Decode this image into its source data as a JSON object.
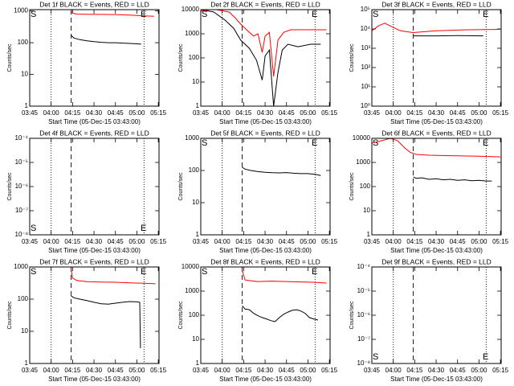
{
  "chart_data": [
    {
      "type": "line",
      "title": "Det 1f BLACK = Events, RED = LLD",
      "xlabel": "Start Time (05-Dec-15 03:43:00)",
      "ylabel": "Counts/sec",
      "xlim": [
        225,
        315.5
      ],
      "xticks": [
        {
          "value": 225,
          "label": "03:45"
        },
        {
          "value": 240,
          "label": "04:00"
        },
        {
          "value": 255,
          "label": "04:15"
        },
        {
          "value": 270,
          "label": "04:30"
        },
        {
          "value": 285,
          "label": "04:45"
        },
        {
          "value": 300,
          "label": "05:00"
        },
        {
          "value": 315,
          "label": "05:15"
        }
      ],
      "log_y": true,
      "ylim": [
        1,
        1100
      ],
      "yticks": [
        1,
        10,
        100,
        1000
      ],
      "vlines": [
        {
          "x": 240,
          "style": "dotted"
        },
        {
          "x": 254,
          "style": "dashed"
        },
        {
          "x": 305,
          "style": "dotted"
        }
      ],
      "annotation_position": "top",
      "annotations": [
        {
          "text": "S",
          "x": 225
        },
        {
          "text": "E",
          "x": 302
        }
      ],
      "series": [
        {
          "color": "#000000",
          "x": [
            254,
            256,
            260,
            265,
            270,
            275,
            280,
            285,
            290,
            295,
            300,
            303
          ],
          "values": [
            170,
            140,
            125,
            115,
            108,
            103,
            100,
            100,
            97,
            95,
            92,
            90
          ]
        },
        {
          "color": "#ff0000",
          "x": [
            254,
            255,
            258,
            265,
            275,
            285,
            295,
            305,
            312
          ],
          "values": [
            1000,
            850,
            800,
            790,
            780,
            770,
            740,
            700,
            680
          ]
        }
      ]
    },
    {
      "type": "line",
      "title": "Det 2f BLACK = Events, RED = LLD",
      "xlabel": "Start Time (05-Dec-15 03:43:00)",
      "ylabel": "Counts/sec",
      "xlim": [
        225,
        315.5
      ],
      "xticks": [
        {
          "value": 225,
          "label": "03:45"
        },
        {
          "value": 240,
          "label": "04:00"
        },
        {
          "value": 255,
          "label": "04:15"
        },
        {
          "value": 270,
          "label": "04:30"
        },
        {
          "value": 285,
          "label": "04:45"
        },
        {
          "value": 300,
          "label": "05:00"
        },
        {
          "value": 315,
          "label": "05:15"
        }
      ],
      "log_y": true,
      "ylim": [
        1,
        10000
      ],
      "yticks": [
        1,
        10,
        100,
        1000,
        10000
      ],
      "vlines": [
        {
          "x": 240,
          "style": "dotted"
        },
        {
          "x": 254,
          "style": "dashed"
        },
        {
          "x": 305,
          "style": "dotted"
        }
      ],
      "annotation_position": "top",
      "annotations": [
        {
          "text": "S",
          "x": 225
        },
        {
          "text": "E",
          "x": 302
        }
      ],
      "series": [
        {
          "color": "#000000",
          "x": [
            225,
            234,
            242,
            248,
            253,
            259,
            264,
            268,
            270,
            273,
            276,
            279,
            282,
            286,
            293,
            302,
            309
          ],
          "values": [
            10000,
            8000,
            3700,
            1700,
            540,
            250,
            80,
            12,
            120,
            210,
            1,
            25,
            210,
            370,
            290,
            370,
            370
          ]
        },
        {
          "color": "#ff0000",
          "x": [
            225,
            231,
            236,
            245,
            249,
            253,
            259,
            262,
            265,
            268,
            270,
            273,
            276,
            279,
            283,
            288,
            313
          ],
          "values": [
            8500,
            10000,
            10000,
            7900,
            4600,
            2500,
            1150,
            800,
            1000,
            170,
            800,
            1150,
            17,
            540,
            1150,
            1470,
            1470
          ]
        }
      ]
    },
    {
      "type": "line",
      "title": "Det 3f BLACK = Events, RED = LLD",
      "xlabel": "Start Time (05-Dec-15 03:43:00)",
      "ylabel": "Counts/sec",
      "xlim": [
        225,
        315.5
      ],
      "xticks": [
        {
          "value": 225,
          "label": "03:45"
        },
        {
          "value": 240,
          "label": "04:00"
        },
        {
          "value": 255,
          "label": "04:15"
        },
        {
          "value": 270,
          "label": "04:30"
        },
        {
          "value": 285,
          "label": "04:45"
        },
        {
          "value": 300,
          "label": "05:00"
        },
        {
          "value": 315,
          "label": "05:15"
        }
      ],
      "log_y": true,
      "ylim": [
        1,
        100000
      ],
      "yticks": [
        {
          "value": 1,
          "label": "10⁰"
        },
        {
          "value": 10,
          "label": "10¹"
        },
        {
          "value": 100,
          "label": "10²"
        },
        {
          "value": 1000,
          "label": "10³"
        },
        {
          "value": 10000,
          "label": "10⁴"
        },
        {
          "value": 100000,
          "label": "10⁵"
        }
      ],
      "vlines": [
        {
          "x": 240,
          "style": "dotted"
        },
        {
          "x": 254,
          "style": "dashed"
        },
        {
          "x": 305,
          "style": "dotted"
        }
      ],
      "annotation_position": "top",
      "annotations": [
        {
          "text": "S",
          "x": 225
        },
        {
          "text": "E",
          "x": 302
        }
      ],
      "series": [
        {
          "color": "#000000",
          "x": [
            254,
            270,
            285,
            303
          ],
          "values": [
            4400,
            4400,
            4500,
            4400
          ]
        },
        {
          "color": "#ff0000",
          "x": [
            225,
            230,
            234,
            240,
            245,
            254,
            270,
            290,
            315
          ],
          "values": [
            8000,
            15000,
            20000,
            12000,
            8000,
            6500,
            8000,
            9000,
            9500
          ]
        }
      ]
    },
    {
      "type": "line",
      "title": "Det 4f BLACK = Events, RED = LLD",
      "xlabel": "Start Time (05-Dec-15 03:43:00)",
      "ylabel": "Counts/sec",
      "xlim": [
        225,
        315.5
      ],
      "xticks": [
        {
          "value": 225,
          "label": "03:45"
        },
        {
          "value": 240,
          "label": "04:00"
        },
        {
          "value": 255,
          "label": "04:15"
        },
        {
          "value": 270,
          "label": "04:30"
        },
        {
          "value": 285,
          "label": "04:45"
        },
        {
          "value": 300,
          "label": "05:00"
        },
        {
          "value": 315,
          "label": "05:15"
        }
      ],
      "log_y": true,
      "ylim": [
        1e-08,
        0.0001
      ],
      "yticks": [
        {
          "value": 1e-08,
          "label": "10⁻⁸"
        },
        {
          "value": 1e-07,
          "label": "10⁻⁷"
        },
        {
          "value": 1e-06,
          "label": "10⁻⁶"
        },
        {
          "value": 1e-05,
          "label": "10⁻⁵"
        },
        {
          "value": 0.0001,
          "label": "10⁻⁴"
        }
      ],
      "vlines": [
        {
          "x": 240,
          "style": "dotted"
        },
        {
          "x": 254,
          "style": "dashed"
        },
        {
          "x": 305,
          "style": "dotted"
        }
      ],
      "annotation_position": "bottom",
      "annotations": [
        {
          "text": "S",
          "x": 225
        },
        {
          "text": "E",
          "x": 302
        }
      ],
      "series": []
    },
    {
      "type": "line",
      "title": "Det 5f BLACK = Events, RED = LLD",
      "xlabel": "Start Time (05-Dec-15 03:43:00)",
      "ylabel": "Counts/sec",
      "xlim": [
        225,
        315.5
      ],
      "xticks": [
        {
          "value": 225,
          "label": "03:45"
        },
        {
          "value": 240,
          "label": "04:00"
        },
        {
          "value": 255,
          "label": "04:15"
        },
        {
          "value": 270,
          "label": "04:30"
        },
        {
          "value": 285,
          "label": "04:45"
        },
        {
          "value": 300,
          "label": "05:00"
        },
        {
          "value": 315,
          "label": "05:15"
        }
      ],
      "log_y": true,
      "ylim": [
        1,
        1000
      ],
      "yticks": [
        1,
        10,
        100,
        1000
      ],
      "vlines": [
        {
          "x": 240,
          "style": "dotted"
        },
        {
          "x": 254,
          "style": "dashed"
        },
        {
          "x": 305,
          "style": "dotted"
        }
      ],
      "annotation_position": "top",
      "annotations": [
        {
          "text": "S",
          "x": 225
        },
        {
          "text": "E",
          "x": 302
        }
      ],
      "series": [
        {
          "color": "#000000",
          "x": [
            254,
            256,
            260,
            265,
            270,
            275,
            280,
            285,
            290,
            295,
            300,
            305,
            309
          ],
          "values": [
            126,
            110,
            100,
            92,
            88,
            85,
            84,
            86,
            82,
            80,
            80,
            76,
            70
          ]
        }
      ]
    },
    {
      "type": "line",
      "title": "Det 6f BLACK = Events, RED = LLD",
      "xlabel": "Start Time (05-Dec-15 03:43:00)",
      "ylabel": "Counts/sec",
      "xlim": [
        225,
        315.5
      ],
      "xticks": [
        {
          "value": 225,
          "label": "03:45"
        },
        {
          "value": 240,
          "label": "04:00"
        },
        {
          "value": 255,
          "label": "04:15"
        },
        {
          "value": 270,
          "label": "04:30"
        },
        {
          "value": 285,
          "label": "04:45"
        },
        {
          "value": 300,
          "label": "05:00"
        },
        {
          "value": 315,
          "label": "05:15"
        }
      ],
      "log_y": true,
      "ylim": [
        1,
        10000
      ],
      "yticks": [
        1,
        10,
        100,
        1000,
        10000
      ],
      "vlines": [
        {
          "x": 240,
          "style": "dotted"
        },
        {
          "x": 254,
          "style": "dashed"
        },
        {
          "x": 305,
          "style": "dotted"
        }
      ],
      "annotation_position": "top",
      "annotations": [
        {
          "text": "S",
          "x": 225
        },
        {
          "text": "E",
          "x": 302
        }
      ],
      "series": [
        {
          "color": "#000000",
          "x": [
            254,
            256,
            260,
            265,
            270,
            275,
            280,
            285,
            290,
            295,
            300,
            305,
            309
          ],
          "values": [
            250,
            220,
            230,
            200,
            210,
            190,
            200,
            180,
            190,
            175,
            180,
            170,
            170
          ]
        },
        {
          "color": "#ff0000",
          "x": [
            225,
            232,
            238,
            243,
            248,
            252,
            256,
            265,
            280,
            300,
            315
          ],
          "values": [
            6300,
            8000,
            10000,
            8000,
            4000,
            2600,
            2150,
            2000,
            1900,
            1800,
            1700
          ]
        }
      ]
    },
    {
      "type": "line",
      "title": "Det 7f BLACK = Events, RED = LLD",
      "xlabel": "Start Time (05-Dec-15 03:43:00)",
      "ylabel": "Counts/sec",
      "xlim": [
        225,
        315.5
      ],
      "xticks": [
        {
          "value": 225,
          "label": "03:45"
        },
        {
          "value": 240,
          "label": "04:00"
        },
        {
          "value": 255,
          "label": "04:15"
        },
        {
          "value": 270,
          "label": "04:30"
        },
        {
          "value": 285,
          "label": "04:45"
        },
        {
          "value": 300,
          "label": "05:00"
        },
        {
          "value": 315,
          "label": "05:15"
        }
      ],
      "log_y": true,
      "ylim": [
        1,
        1000
      ],
      "yticks": [
        1,
        10,
        100,
        1000
      ],
      "vlines": [
        {
          "x": 240,
          "style": "dotted"
        },
        {
          "x": 254,
          "style": "dashed"
        },
        {
          "x": 305,
          "style": "dotted"
        }
      ],
      "annotation_position": "top",
      "annotations": [
        {
          "text": "S",
          "x": 225
        },
        {
          "text": "E",
          "x": 302
        }
      ],
      "series": [
        {
          "color": "#000000",
          "x": [
            254,
            256,
            260,
            265,
            270,
            275,
            280,
            285,
            290,
            295,
            300,
            302,
            302.5
          ],
          "values": [
            125,
            110,
            100,
            90,
            80,
            72,
            70,
            75,
            80,
            84,
            82,
            80,
            3
          ]
        },
        {
          "color": "#ff0000",
          "x": [
            254,
            255,
            258,
            265,
            275,
            285,
            295,
            305,
            313
          ],
          "values": [
            830,
            450,
            380,
            350,
            340,
            335,
            320,
            310,
            300
          ]
        }
      ]
    },
    {
      "type": "line",
      "title": "Det 8f BLACK = Events, RED = LLD",
      "xlabel": "Start Time (05-Dec-15 03:43:00)",
      "ylabel": "Counts/sec",
      "xlim": [
        225,
        315.5
      ],
      "xticks": [
        {
          "value": 225,
          "label": "03:45"
        },
        {
          "value": 240,
          "label": "04:00"
        },
        {
          "value": 255,
          "label": "04:15"
        },
        {
          "value": 270,
          "label": "04:30"
        },
        {
          "value": 285,
          "label": "04:45"
        },
        {
          "value": 300,
          "label": "05:00"
        },
        {
          "value": 315,
          "label": "05:15"
        }
      ],
      "log_y": true,
      "ylim": [
        1,
        10000
      ],
      "yticks": [
        1,
        10,
        100,
        1000,
        10000
      ],
      "vlines": [
        {
          "x": 240,
          "style": "dotted"
        },
        {
          "x": 254,
          "style": "dashed"
        },
        {
          "x": 305,
          "style": "dotted"
        }
      ],
      "annotation_position": "top",
      "annotations": [
        {
          "text": "S",
          "x": 225
        },
        {
          "text": "E",
          "x": 302
        }
      ],
      "series": [
        {
          "color": "#000000",
          "x": [
            254,
            256,
            259,
            262,
            265,
            268,
            271,
            274,
            277,
            280,
            283,
            286,
            289,
            292,
            295,
            298,
            301,
            304,
            307
          ],
          "values": [
            250,
            180,
            170,
            120,
            95,
            80,
            70,
            60,
            54,
            80,
            110,
            135,
            160,
            170,
            150,
            120,
            80,
            70,
            63
          ]
        },
        {
          "color": "#ff0000",
          "x": [
            254,
            256,
            260,
            265,
            275,
            285,
            295,
            305,
            313
          ],
          "values": [
            7300,
            2900,
            2700,
            2500,
            2600,
            2500,
            2400,
            2300,
            2150
          ]
        }
      ]
    },
    {
      "type": "line",
      "title": "Det 9f BLACK = Events, RED = LLD",
      "xlabel": "Start Time (05-Dec-15 03:43:00)",
      "ylabel": "Counts/sec",
      "xlim": [
        225,
        315.5
      ],
      "xticks": [
        {
          "value": 225,
          "label": "03:45"
        },
        {
          "value": 240,
          "label": "04:00"
        },
        {
          "value": 255,
          "label": "04:15"
        },
        {
          "value": 270,
          "label": "04:30"
        },
        {
          "value": 285,
          "label": "04:45"
        },
        {
          "value": 300,
          "label": "05:00"
        },
        {
          "value": 315,
          "label": "05:15"
        }
      ],
      "log_y": true,
      "ylim": [
        1e-08,
        0.0001
      ],
      "yticks": [
        {
          "value": 1e-08,
          "label": "10⁻⁸"
        },
        {
          "value": 1e-07,
          "label": "10⁻⁷"
        },
        {
          "value": 1e-06,
          "label": "10⁻⁶"
        },
        {
          "value": 1e-05,
          "label": "10⁻⁵"
        },
        {
          "value": 0.0001,
          "label": "10⁻⁴"
        }
      ],
      "vlines": [
        {
          "x": 240,
          "style": "dotted"
        },
        {
          "x": 254,
          "style": "dashed"
        },
        {
          "x": 305,
          "style": "dotted"
        }
      ],
      "annotation_position": "bottom",
      "annotations": [
        {
          "text": "S",
          "x": 225
        },
        {
          "text": "E",
          "x": 302
        }
      ],
      "series": []
    }
  ]
}
